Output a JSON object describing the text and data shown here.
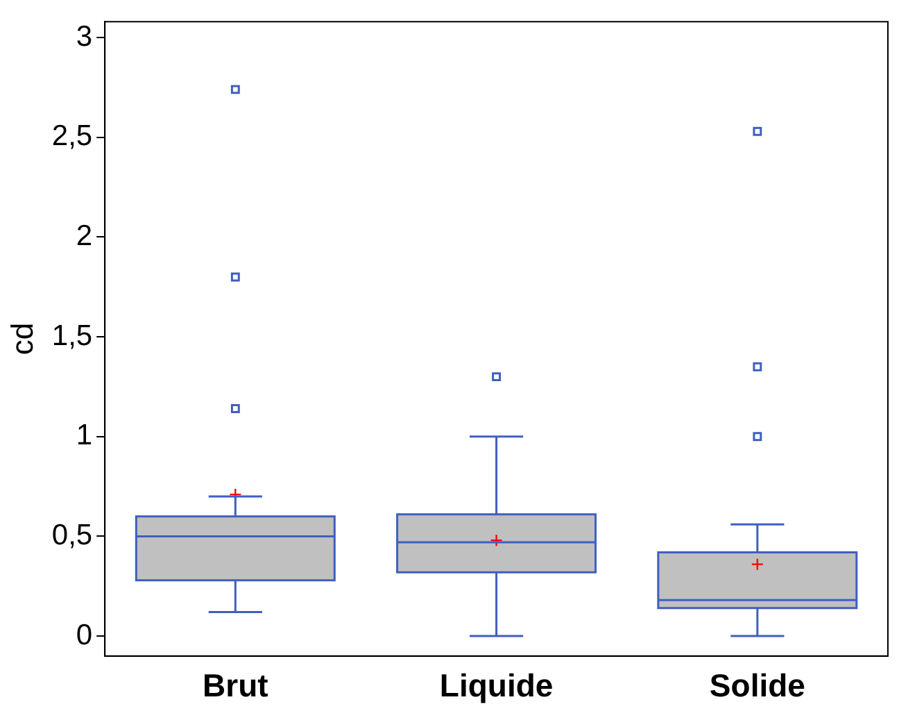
{
  "chart_data": {
    "type": "box",
    "ylabel": "cd",
    "categories": [
      "Brut",
      "Liquide",
      "Solide"
    ],
    "color": "#c0c0c0",
    "boxes": [
      {
        "low": 0.12,
        "q1": 0.28,
        "median": 0.5,
        "q3": 0.6,
        "high": 0.7,
        "mean": 0.71,
        "outliers": [
          1.14,
          1.8,
          2.74
        ]
      },
      {
        "low": 0,
        "q1": 0.32,
        "median": 0.47,
        "q3": 0.61,
        "high": 1.0,
        "mean": 0.48,
        "outliers": [
          1.3
        ]
      },
      {
        "low": 0,
        "q1": 0.14,
        "median": 0.18,
        "q3": 0.42,
        "high": 0.56,
        "mean": 0.36,
        "outliers": [
          1.0,
          1.35,
          2.53
        ]
      }
    ],
    "ylim": [
      -0.1,
      3.08
    ],
    "yticks": [
      0,
      {
        "value": 0.5,
        "label": "0,5"
      },
      1,
      {
        "value": 1.5,
        "label": "1,5"
      },
      2,
      {
        "value": 2.5,
        "label": "2,5"
      },
      3
    ],
    "grid": false,
    "legend": false
  }
}
